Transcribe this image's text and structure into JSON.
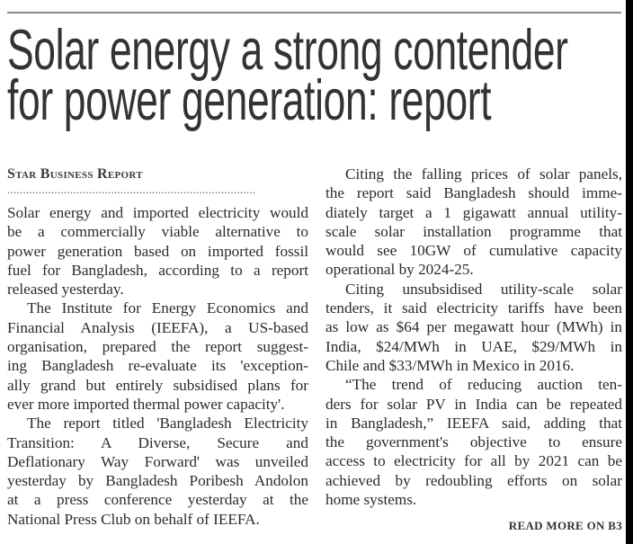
{
  "headline": [
    "Solar energy a strong contender",
    "for power generation: report"
  ],
  "byline": "Star Business Report",
  "separator": "...............................................................................",
  "columns": [
    [
      [
        "Solar energy and imported electricity would",
        "be a commercially viable alternative to",
        "power generation based on imported fossil",
        "fuel for Bangladesh, according to a report",
        "released yesterday."
      ],
      [
        "The Institute for Energy Economics and",
        "Financial Analysis (IEEFA), a US-based",
        "organisation, prepared the report suggest-",
        "ing Bangladesh re-evaluate its 'exception-",
        "ally grand but entirely subsidised plans for",
        "ever more imported thermal power capacity'."
      ],
      [
        "The report titled 'Bangladesh Electricity",
        "Transition: A Diverse, Secure and",
        "Deflationary Way Forward' was unveiled",
        "yesterday by Bangladesh Poribesh Andolon",
        "at a press conference yesterday at the",
        "National Press Club on behalf of IEEFA."
      ]
    ],
    [
      [
        "Citing the falling prices of solar panels,",
        "the report said Bangladesh should imme-",
        "diately target a 1 gigawatt annual utility-",
        "scale solar installation programme that",
        "would see 10GW of cumulative capacity",
        "operational by 2024-25."
      ],
      [
        "Citing unsubsidised utility-scale solar",
        "tenders, it said electricity tariffs have been",
        "as low as $64 per megawatt hour (MWh) in",
        "India, $24/MWh in UAE, $29/MWh in",
        "Chile and $33/MWh in Mexico in 2016."
      ],
      [
        "“The trend of reducing auction ten-",
        "ders for solar PV in India can be repeated",
        "in Bangladesh,” IEEFA said, adding that",
        "the government's objective to ensure",
        "access to electricity for all by 2021 can be",
        "achieved by redoubling efforts on solar",
        "home systems."
      ]
    ]
  ],
  "read_more": "READ MORE ON B3"
}
